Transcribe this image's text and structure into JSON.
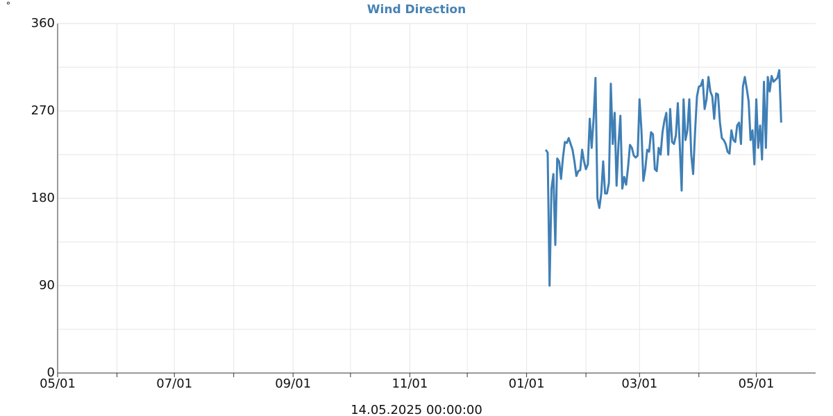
{
  "chart_data": {
    "type": "line",
    "title": "Wind Direction",
    "y_label": "°",
    "x_label": "14.05.2025 00:00:00",
    "xlim": [
      "2024-05-01",
      "2025-06-01"
    ],
    "xticks": [
      {
        "value": "2024-05-01",
        "label": "05/01"
      },
      {
        "value": "2024-06-01",
        "label": null
      },
      {
        "value": "2024-07-01",
        "label": "07/01"
      },
      {
        "value": "2024-08-01",
        "label": null
      },
      {
        "value": "2024-09-01",
        "label": "09/01"
      },
      {
        "value": "2024-10-01",
        "label": null
      },
      {
        "value": "2024-11-01",
        "label": "11/01"
      },
      {
        "value": "2024-12-01",
        "label": null
      },
      {
        "value": "2025-01-01",
        "label": "01/01"
      },
      {
        "value": "2025-02-01",
        "label": null
      },
      {
        "value": "2025-03-01",
        "label": "03/01"
      },
      {
        "value": "2025-04-01",
        "label": null
      },
      {
        "value": "2025-05-01",
        "label": "05/01"
      }
    ],
    "ylim": [
      0,
      360
    ],
    "yticks": [
      0,
      90,
      180,
      270,
      360
    ],
    "minor_yticks": [
      45,
      135,
      225,
      315
    ],
    "grid": true,
    "series": [
      {
        "name": "Wind Direction",
        "color": "#3f7fb5",
        "x": [
          "2025-01-11",
          "2025-01-12",
          "2025-01-13",
          "2025-01-14",
          "2025-01-15",
          "2025-01-16",
          "2025-01-17",
          "2025-01-18",
          "2025-01-19",
          "2025-01-20",
          "2025-01-21",
          "2025-01-22",
          "2025-01-23",
          "2025-01-24",
          "2025-01-25",
          "2025-01-26",
          "2025-01-27",
          "2025-01-28",
          "2025-01-29",
          "2025-01-30",
          "2025-01-31",
          "2025-02-01",
          "2025-02-02",
          "2025-02-03",
          "2025-02-04",
          "2025-02-05",
          "2025-02-06",
          "2025-02-07",
          "2025-02-08",
          "2025-02-09",
          "2025-02-10",
          "2025-02-11",
          "2025-02-12",
          "2025-02-13",
          "2025-02-14",
          "2025-02-15",
          "2025-02-16",
          "2025-02-17",
          "2025-02-18",
          "2025-02-19",
          "2025-02-20",
          "2025-02-21",
          "2025-02-22",
          "2025-02-23",
          "2025-02-24",
          "2025-02-25",
          "2025-02-26",
          "2025-02-27",
          "2025-02-28",
          "2025-03-01",
          "2025-03-02",
          "2025-03-03",
          "2025-03-04",
          "2025-03-05",
          "2025-03-06",
          "2025-03-07",
          "2025-03-08",
          "2025-03-09",
          "2025-03-10",
          "2025-03-11",
          "2025-03-12",
          "2025-03-13",
          "2025-03-14",
          "2025-03-15",
          "2025-03-16",
          "2025-03-17",
          "2025-03-18",
          "2025-03-19",
          "2025-03-20",
          "2025-03-21",
          "2025-03-22",
          "2025-03-23",
          "2025-03-24",
          "2025-03-25",
          "2025-03-26",
          "2025-03-27",
          "2025-03-28",
          "2025-03-29",
          "2025-03-30",
          "2025-03-31",
          "2025-04-01",
          "2025-04-02",
          "2025-04-03",
          "2025-04-04",
          "2025-04-05",
          "2025-04-06",
          "2025-04-07",
          "2025-04-08",
          "2025-04-09",
          "2025-04-10",
          "2025-04-11",
          "2025-04-12",
          "2025-04-13",
          "2025-04-14",
          "2025-04-15",
          "2025-04-16",
          "2025-04-17",
          "2025-04-18",
          "2025-04-19",
          "2025-04-20",
          "2025-04-21",
          "2025-04-22",
          "2025-04-23",
          "2025-04-24",
          "2025-04-25",
          "2025-04-26",
          "2025-04-27",
          "2025-04-28",
          "2025-04-29",
          "2025-04-30",
          "2025-05-01",
          "2025-05-02",
          "2025-05-03",
          "2025-05-04",
          "2025-05-05",
          "2025-05-06",
          "2025-05-07",
          "2025-05-08",
          "2025-05-09",
          "2025-05-10",
          "2025-05-11",
          "2025-05-12",
          "2025-05-13",
          "2025-05-14"
        ],
        "values": [
          230,
          227,
          90,
          190,
          205,
          132,
          221,
          218,
          200,
          222,
          238,
          237,
          242,
          236,
          230,
          218,
          203,
          208,
          209,
          230,
          218,
          210,
          215,
          262,
          232,
          262,
          304,
          180,
          170,
          185,
          218,
          185,
          185,
          196,
          298,
          236,
          268,
          193,
          236,
          265,
          190,
          202,
          194,
          212,
          235,
          232,
          224,
          222,
          224,
          282,
          250,
          198,
          210,
          230,
          228,
          248,
          246,
          210,
          208,
          232,
          225,
          248,
          260,
          268,
          225,
          272,
          238,
          236,
          245,
          278,
          236,
          188,
          282,
          240,
          250,
          282,
          225,
          205,
          248,
          285,
          295,
          296,
          302,
          272,
          282,
          305,
          290,
          285,
          262,
          288,
          287,
          258,
          242,
          240,
          236,
          228,
          226,
          250,
          240,
          238,
          255,
          258,
          236,
          295,
          305,
          293,
          280,
          240,
          250,
          215,
          282,
          232,
          255,
          220,
          300,
          232,
          305,
          290,
          306,
          300,
          302,
          304,
          312,
          258
        ]
      }
    ]
  }
}
